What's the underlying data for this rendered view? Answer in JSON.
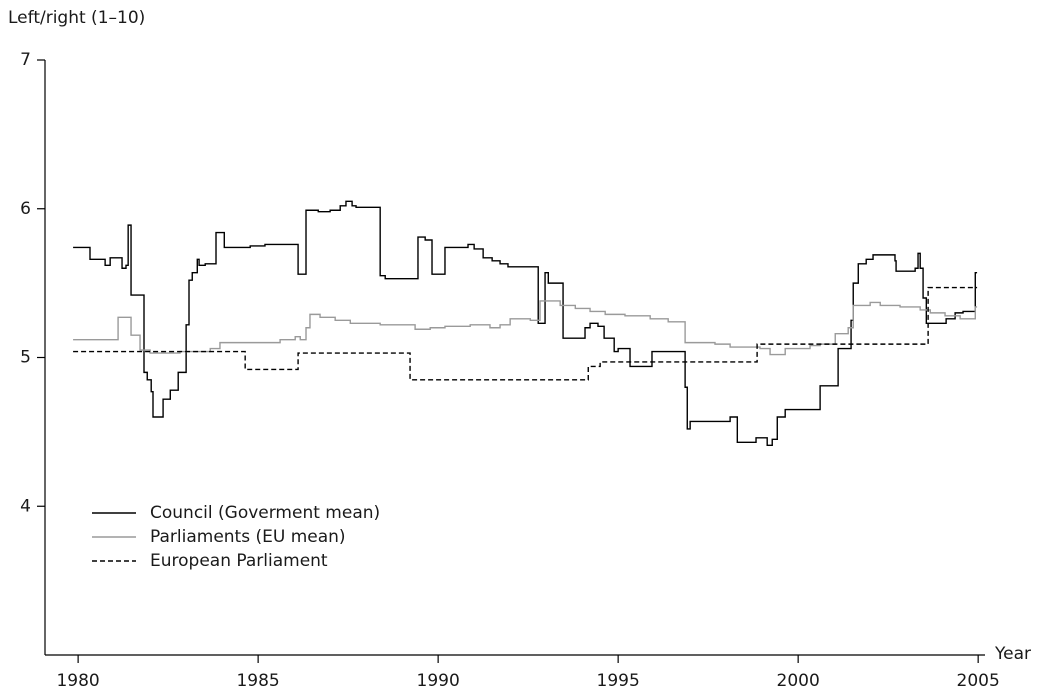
{
  "chart_data": {
    "type": "line",
    "step": "post",
    "y_label": "Left/right (1–10)",
    "x_label": "Year",
    "xlim": [
      1979.08,
      2005.19
    ],
    "xticks": [
      1980,
      1985,
      1990,
      1995,
      2000,
      2005
    ],
    "ylim": [
      3,
      7
    ],
    "yticks": [
      4,
      5,
      6,
      7
    ],
    "grid": false,
    "legend": "lower left",
    "series": [
      {
        "name": "Council (Goverment mean)",
        "color": "#000000",
        "dash": "solid",
        "x": [
          1979.86,
          1980.33,
          1980.75,
          1980.89,
          1981.22,
          1981.33,
          1981.39,
          1981.47,
          1981.83,
          1981.92,
          1982.03,
          1982.08,
          1982.36,
          1982.56,
          1982.78,
          1983.0,
          1983.08,
          1983.17,
          1983.31,
          1983.36,
          1983.53,
          1983.83,
          1984.06,
          1984.78,
          1985.19,
          1986.11,
          1986.33,
          1986.67,
          1987.0,
          1987.28,
          1987.44,
          1987.61,
          1987.72,
          1988.39,
          1988.53,
          1989.44,
          1989.64,
          1989.83,
          1990.19,
          1990.83,
          1991.0,
          1991.25,
          1991.5,
          1991.72,
          1991.94,
          1992.78,
          1992.97,
          1993.06,
          1993.47,
          1994.08,
          1994.22,
          1994.44,
          1994.61,
          1994.89,
          1995.0,
          1995.33,
          1995.94,
          1996.86,
          1996.92,
          1997.0,
          1998.11,
          1998.31,
          1998.83,
          1999.14,
          1999.28,
          1999.42,
          1999.64,
          2000.61,
          2001.11,
          2001.47,
          2001.53,
          2001.67,
          2001.89,
          2002.08,
          2002.69,
          2002.72,
          2003.25,
          2003.33,
          2003.39,
          2003.47,
          2003.56,
          2004.11,
          2004.36,
          2004.58,
          2004.92,
          2004.97
        ],
        "values": [
          5.74,
          5.66,
          5.62,
          5.67,
          5.6,
          5.62,
          5.89,
          5.42,
          4.9,
          4.85,
          4.77,
          4.6,
          4.72,
          4.78,
          4.9,
          5.22,
          5.52,
          5.57,
          5.66,
          5.62,
          5.63,
          5.84,
          5.74,
          5.75,
          5.76,
          5.56,
          5.99,
          5.98,
          5.99,
          6.02,
          6.05,
          6.02,
          6.01,
          5.55,
          5.53,
          5.81,
          5.79,
          5.56,
          5.74,
          5.76,
          5.73,
          5.67,
          5.65,
          5.63,
          5.61,
          5.23,
          5.57,
          5.5,
          5.13,
          5.2,
          5.23,
          5.21,
          5.13,
          5.04,
          5.06,
          4.94,
          5.04,
          4.8,
          4.52,
          4.57,
          4.6,
          4.43,
          4.46,
          4.41,
          4.45,
          4.6,
          4.65,
          4.81,
          5.06,
          5.25,
          5.5,
          5.63,
          5.66,
          5.69,
          5.65,
          5.58,
          5.6,
          5.7,
          5.6,
          5.4,
          5.23,
          5.26,
          5.3,
          5.31,
          5.57,
          5.57
        ]
      },
      {
        "name": "Parliaments (EU mean)",
        "color": "#9a9a9a",
        "dash": "solid",
        "x": [
          1979.86,
          1981.03,
          1981.11,
          1981.39,
          1981.47,
          1981.72,
          1982.0,
          1982.83,
          1983.67,
          1983.94,
          1985.61,
          1986.03,
          1986.17,
          1986.33,
          1986.44,
          1986.72,
          1987.14,
          1987.56,
          1988.39,
          1989.36,
          1989.78,
          1990.19,
          1990.89,
          1991.44,
          1991.72,
          1992.0,
          1992.56,
          1992.83,
          1993.39,
          1993.81,
          1994.22,
          1994.64,
          1995.19,
          1995.89,
          1996.39,
          1996.86,
          1997.69,
          1998.11,
          1998.94,
          1999.22,
          1999.64,
          2000.33,
          2000.61,
          2001.03,
          2001.39,
          2001.53,
          2002.0,
          2002.28,
          2002.83,
          2003.39,
          2003.67,
          2004.08,
          2004.5,
          2004.92,
          2004.97
        ],
        "values": [
          5.12,
          5.12,
          5.27,
          5.27,
          5.15,
          5.05,
          5.03,
          5.04,
          5.06,
          5.1,
          5.12,
          5.14,
          5.12,
          5.2,
          5.29,
          5.27,
          5.25,
          5.23,
          5.22,
          5.19,
          5.2,
          5.21,
          5.22,
          5.2,
          5.22,
          5.26,
          5.25,
          5.38,
          5.35,
          5.33,
          5.31,
          5.29,
          5.28,
          5.26,
          5.24,
          5.1,
          5.09,
          5.07,
          5.06,
          5.02,
          5.06,
          5.08,
          5.09,
          5.16,
          5.2,
          5.35,
          5.37,
          5.35,
          5.34,
          5.32,
          5.3,
          5.28,
          5.26,
          5.34,
          5.34
        ]
      },
      {
        "name": "European Parliament",
        "color": "#000000",
        "dash": "dashed",
        "x": [
          1979.86,
          1984.64,
          1986.11,
          1989.22,
          1994.17,
          1994.5,
          1998.86,
          2003.61,
          2004.97
        ],
        "values": [
          5.04,
          4.92,
          5.03,
          4.85,
          4.94,
          4.97,
          5.09,
          5.47,
          5.47
        ]
      }
    ]
  }
}
